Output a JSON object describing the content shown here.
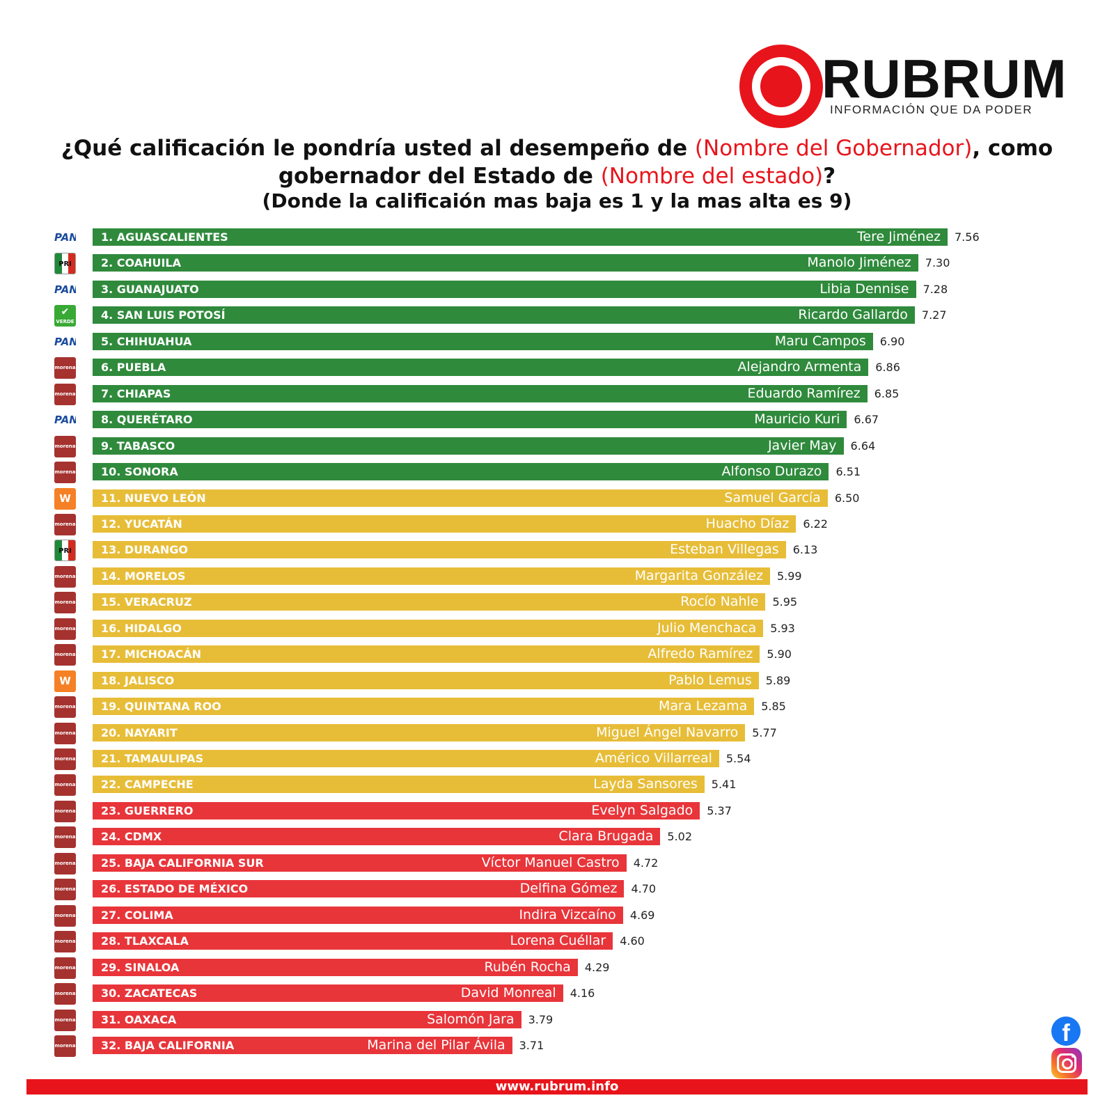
{
  "brand": {
    "name": "RUBRUM",
    "tagline": "INFORMACIÓN QUE DA PODER",
    "color": "#e8141b"
  },
  "question": {
    "part1": "¿Qué calificación le pondría usted al desempeño de ",
    "highlight1": "(Nombre del Gobernador)",
    "part2": ", como gobernador del Estado de ",
    "highlight2": "(Nombre del estado)",
    "part3": "?"
  },
  "subtitle": "(Donde la calificaión mas baja es 1 y la mas alta es 9)",
  "colors": {
    "green": "#2f8a3c",
    "yellow": "#e7bd38",
    "red": "#e8353a"
  },
  "chart_data": {
    "type": "bar",
    "orientation": "horizontal",
    "categories": [
      "1. AGUASCALIENTES",
      "2. COAHUILA",
      "3. GUANAJUATO",
      "4. SAN LUIS POTOSÍ",
      "5. CHIHUAHUA",
      "6. PUEBLA",
      "7. CHIAPAS",
      "8. QUERÉTARO",
      "9. TABASCO",
      "10. SONORA",
      "11. NUEVO LEÓN",
      "12. YUCATÁN",
      "13. DURANGO",
      "14. MORELOS",
      "15. VERACRUZ",
      "16. HIDALGO",
      "17. MICHOACÁN",
      "18. JALISCO",
      "19. QUINTANA ROO",
      "20. NAYARIT",
      "21. TAMAULIPAS",
      "22. CAMPECHE",
      "23. GUERRERO",
      "24. CDMX",
      "25. BAJA CALIFORNIA SUR",
      "26. ESTADO DE MÉXICO",
      "27. COLIMA",
      "28. TLAXCALA",
      "29. SINALOA",
      "30. ZACATECAS",
      "31. OAXACA",
      "32. BAJA CALIFORNIA"
    ],
    "governors": [
      "Tere Jiménez",
      "Manolo Jiménez",
      "Libia Dennise",
      "Ricardo Gallardo",
      "Maru Campos",
      "Alejandro Armenta",
      "Eduardo Ramírez",
      "Mauricio Kuri",
      "Javier May",
      "Alfonso Durazo",
      "Samuel García",
      "Huacho Díaz",
      "Esteban Villegas",
      "Margarita González",
      "Rocío Nahle",
      "Julio Menchaca",
      "Alfredo Ramírez",
      "Pablo Lemus",
      "Mara Lezama",
      "Miguel Ángel Navarro",
      "Américo Villarreal",
      "Layda Sansores",
      "Evelyn Salgado",
      "Clara Brugada",
      "Víctor Manuel Castro",
      "Delfina Gómez",
      "Indira Vizcaíno",
      "Lorena Cuéllar",
      "Rubén Rocha",
      "David Monreal",
      "Salomón Jara",
      "Marina del Pilar Ávila"
    ],
    "parties": [
      "pan",
      "pri",
      "pan",
      "verde",
      "pan",
      "morena",
      "morena",
      "pan",
      "morena",
      "morena",
      "mc",
      "morena",
      "pri",
      "morena",
      "morena",
      "morena",
      "morena",
      "mc",
      "morena",
      "morena",
      "morena",
      "morena",
      "morena",
      "morena",
      "morena",
      "morena",
      "morena",
      "morena",
      "morena",
      "morena",
      "morena",
      "morena"
    ],
    "values": [
      7.56,
      7.3,
      7.28,
      7.27,
      6.9,
      6.86,
      6.85,
      6.67,
      6.64,
      6.51,
      6.5,
      6.22,
      6.13,
      5.99,
      5.95,
      5.93,
      5.9,
      5.89,
      5.85,
      5.77,
      5.54,
      5.41,
      5.37,
      5.02,
      4.72,
      4.7,
      4.69,
      4.6,
      4.29,
      4.16,
      3.79,
      3.71
    ],
    "value_labels": [
      "7.56",
      "7.30",
      "7.28",
      "7.27",
      "6.90",
      "6.86",
      "6.85",
      "6.67",
      "6.64",
      "6.51",
      "6.50",
      "6.22",
      "6.13",
      "5.99",
      "5.95",
      "5.93",
      "5.90",
      "5.89",
      "5.85",
      "5.77",
      "5.54",
      "5.41",
      "5.37",
      "5.02",
      "4.72",
      "4.70",
      "4.69",
      "4.60",
      "4.29",
      "4.16",
      "3.79",
      "3.71"
    ],
    "color_groups": [
      "green",
      "green",
      "green",
      "green",
      "green",
      "green",
      "green",
      "green",
      "green",
      "green",
      "yellow",
      "yellow",
      "yellow",
      "yellow",
      "yellow",
      "yellow",
      "yellow",
      "yellow",
      "yellow",
      "yellow",
      "yellow",
      "yellow",
      "red",
      "red",
      "red",
      "red",
      "red",
      "red",
      "red",
      "red",
      "red",
      "red"
    ],
    "xlim": [
      0,
      9
    ],
    "grid": false
  },
  "party_logos": {
    "pan": "PAN",
    "pri": "PRI",
    "verde": "VERDE",
    "morena": "morena",
    "mc": "MC"
  },
  "social": {
    "facebook": "facebook-icon",
    "instagram": "instagram-icon"
  },
  "footer": {
    "url": "www.rubrum.info"
  }
}
